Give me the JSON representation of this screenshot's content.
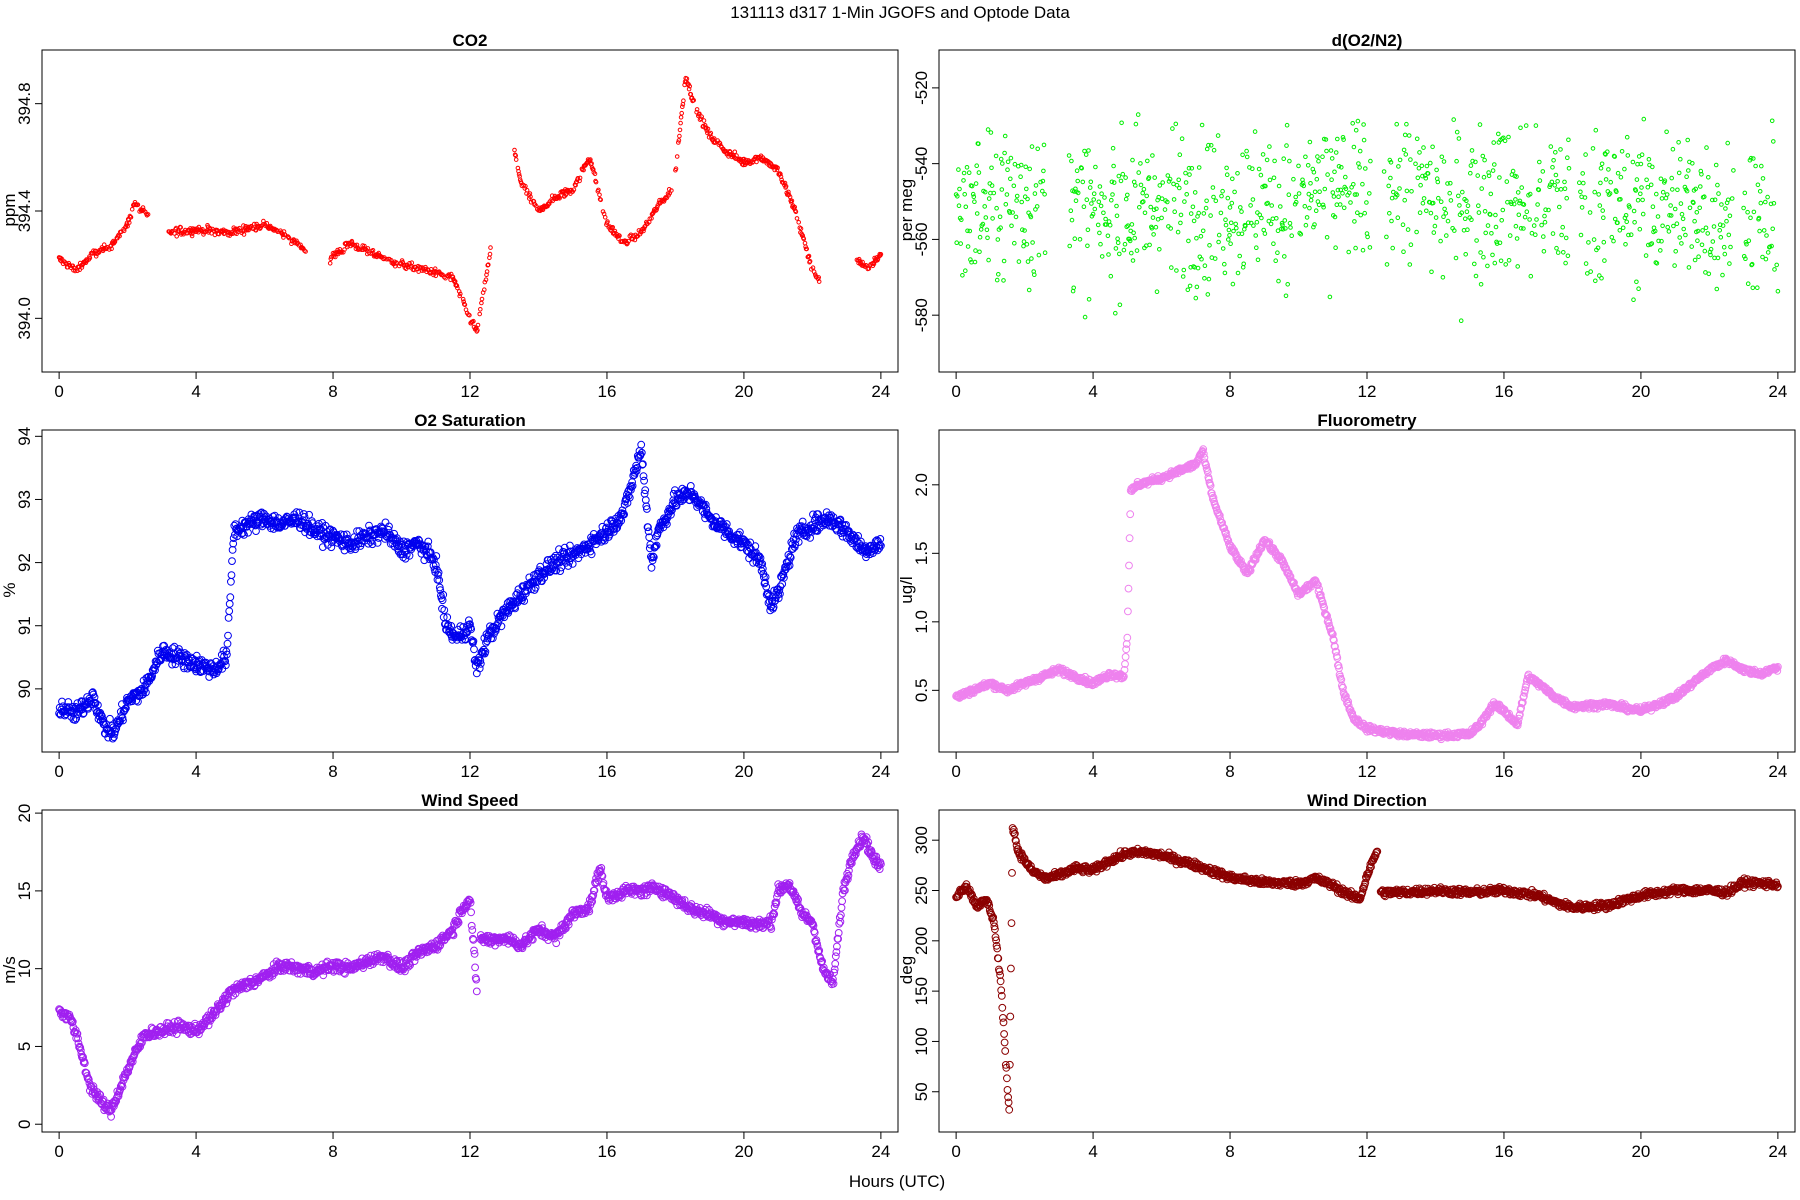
{
  "figure": {
    "title": "131113   d317   1-Min  JGOFS and Optode Data",
    "xlabel": "Hours (UTC)"
  },
  "chart_data": [
    {
      "type": "scatter",
      "title": "CO2",
      "ylabel": "ppm",
      "color": "#ff0000",
      "marker_size": "small",
      "xlim": [
        -0.5,
        24.5
      ],
      "ylim": [
        393.8,
        395.0
      ],
      "xticks": [
        0,
        4,
        8,
        12,
        16,
        20,
        24
      ],
      "yticks": [
        394.0,
        394.4,
        394.8
      ],
      "ytick_labels": [
        "394.0",
        "394.4",
        "394.8"
      ],
      "gaps": [
        [
          2.6,
          3.2
        ],
        [
          7.2,
          7.9
        ],
        [
          12.6,
          13.3
        ],
        [
          17.9,
          18.0
        ],
        [
          22.2,
          23.3
        ]
      ],
      "series": [
        {
          "x": [
            0,
            0.5,
            1,
            1.5,
            2,
            2.2,
            2.6,
            3.2,
            4,
            5,
            6,
            7,
            7.2,
            7.9,
            8.5,
            9,
            10,
            11,
            11.5,
            12,
            12.2,
            12.6,
            13.3,
            13.5,
            14,
            14.5,
            15,
            15.5,
            16,
            16.5,
            17,
            17.5,
            17.9,
            18.0,
            18.3,
            18.6,
            19,
            19.5,
            20,
            20.5,
            21,
            21.5,
            22,
            22.2,
            23.3,
            23.6,
            24
          ],
          "y": [
            394.22,
            394.18,
            394.24,
            394.27,
            394.35,
            394.43,
            394.38,
            394.32,
            394.33,
            394.32,
            394.35,
            394.28,
            394.25,
            394.22,
            394.28,
            394.25,
            394.2,
            394.17,
            394.15,
            394.0,
            393.95,
            394.25,
            394.62,
            394.5,
            394.4,
            394.45,
            394.48,
            394.6,
            394.35,
            394.28,
            394.32,
            394.42,
            394.48,
            394.55,
            394.9,
            394.78,
            394.68,
            394.62,
            394.58,
            394.6,
            394.55,
            394.4,
            394.18,
            394.15,
            394.22,
            394.18,
            394.24
          ]
        }
      ]
    },
    {
      "type": "scatter",
      "title": "d(O2/N2)",
      "ylabel": "per meg",
      "color": "#00ee00",
      "marker_size": "small",
      "xlim": [
        -0.5,
        24.5
      ],
      "ylim": [
        -595,
        -510
      ],
      "xticks": [
        0,
        4,
        8,
        12,
        16,
        20,
        24
      ],
      "yticks": [
        -580,
        -560,
        -540,
        -520
      ],
      "ytick_labels": [
        "-580",
        "-560",
        "-540",
        "-520"
      ],
      "gaps": [
        [
          2.6,
          3.3
        ],
        [
          12.1,
          12.5
        ],
        [
          13.3,
          13.4
        ],
        [
          17.9,
          18.2
        ],
        [
          22.7,
          23.0
        ]
      ],
      "series": [
        {
          "x": [
            0,
            1,
            2,
            2.6,
            3.3,
            4,
            5,
            6,
            7,
            8,
            9,
            10,
            11,
            12.1,
            12.5,
            13.3,
            13.4,
            14,
            15,
            16,
            17,
            17.9,
            18.2,
            19,
            20,
            21,
            22,
            22.7,
            23.0,
            24
          ],
          "y": [
            -553,
            -552,
            -550,
            -549,
            -553,
            -555,
            -553,
            -551,
            -552,
            -552,
            -551,
            -550,
            -549,
            -549,
            -545,
            -545,
            -547,
            -550,
            -550,
            -549,
            -550,
            -551,
            -550,
            -551,
            -551,
            -552,
            -553,
            -553,
            -555,
            -556
          ],
          "spread": 14
        }
      ]
    },
    {
      "type": "scatter",
      "title": "O2 Saturation",
      "ylabel": "%",
      "color": "#0000ee",
      "marker_size": "large",
      "xlim": [
        -0.5,
        24.5
      ],
      "ylim": [
        89.0,
        94.1
      ],
      "xticks": [
        0,
        4,
        8,
        12,
        16,
        20,
        24
      ],
      "yticks": [
        90,
        91,
        92,
        93,
        94
      ],
      "ytick_labels": [
        "90",
        "91",
        "92",
        "93",
        "94"
      ],
      "gaps": [],
      "series": [
        {
          "x": [
            0,
            0.5,
            1,
            1.3,
            1.6,
            2,
            2.5,
            3,
            3.5,
            4,
            4.5,
            4.9,
            5.1,
            5.5,
            6,
            6.5,
            7,
            7.5,
            8,
            8.5,
            9,
            9.5,
            10,
            10.5,
            11,
            11.3,
            11.6,
            12,
            12.2,
            12.5,
            13,
            13.5,
            14,
            14.5,
            15,
            15.5,
            16,
            16.5,
            16.8,
            17,
            17.3,
            17.5,
            18,
            18.5,
            19,
            19.5,
            20,
            20.5,
            20.8,
            21,
            21.5,
            22,
            22.5,
            23,
            23.5,
            24
          ],
          "y": [
            89.7,
            89.6,
            89.9,
            89.4,
            89.3,
            89.8,
            90.0,
            90.6,
            90.5,
            90.4,
            90.3,
            90.5,
            92.5,
            92.6,
            92.7,
            92.6,
            92.7,
            92.5,
            92.4,
            92.3,
            92.4,
            92.5,
            92.2,
            92.3,
            92.0,
            91.0,
            90.8,
            91.0,
            90.3,
            90.8,
            91.2,
            91.5,
            91.8,
            92.0,
            92.1,
            92.3,
            92.5,
            92.8,
            93.4,
            93.8,
            92.0,
            92.5,
            93.0,
            93.1,
            92.7,
            92.5,
            92.3,
            92.0,
            91.3,
            91.5,
            92.4,
            92.6,
            92.7,
            92.5,
            92.2,
            92.3
          ],
          "spread": 0.1
        }
      ]
    },
    {
      "type": "scatter",
      "title": "Fluorometry",
      "ylabel": "ug/l",
      "color": "#ee82ee",
      "marker_size": "large",
      "xlim": [
        -0.5,
        24.5
      ],
      "ylim": [
        0.05,
        2.4
      ],
      "xticks": [
        0,
        4,
        8,
        12,
        16,
        20,
        24
      ],
      "yticks": [
        0.5,
        1.0,
        1.5,
        2.0
      ],
      "ytick_labels": [
        "0.5",
        "1.0",
        "1.5",
        "2.0"
      ],
      "gaps": [],
      "series": [
        {
          "x": [
            0,
            0.5,
            1,
            1.5,
            2,
            2.5,
            3,
            3.5,
            4,
            4.5,
            4.9,
            5.0,
            5.1,
            5.3,
            6,
            6.5,
            7,
            7.2,
            7.5,
            8,
            8.5,
            9,
            9.5,
            10,
            10.5,
            11,
            11.3,
            11.6,
            12,
            12.5,
            13,
            14,
            15,
            15.3,
            15.7,
            16,
            16.4,
            16.7,
            17,
            17.5,
            18,
            19,
            20,
            20.5,
            21,
            21.5,
            22,
            22.5,
            23,
            23.5,
            24
          ],
          "y": [
            0.45,
            0.5,
            0.55,
            0.5,
            0.55,
            0.6,
            0.65,
            0.6,
            0.55,
            0.62,
            0.6,
            0.9,
            1.95,
            2.0,
            2.05,
            2.1,
            2.15,
            2.25,
            1.9,
            1.55,
            1.35,
            1.6,
            1.45,
            1.2,
            1.3,
            0.9,
            0.5,
            0.3,
            0.22,
            0.2,
            0.18,
            0.17,
            0.18,
            0.25,
            0.4,
            0.35,
            0.25,
            0.6,
            0.55,
            0.45,
            0.38,
            0.4,
            0.35,
            0.4,
            0.45,
            0.55,
            0.65,
            0.72,
            0.65,
            0.62,
            0.67
          ],
          "spread": 0.015
        }
      ]
    },
    {
      "type": "scatter",
      "title": "Wind Speed",
      "ylabel": "m/s",
      "color": "#a020f0",
      "marker_size": "large",
      "xlim": [
        -0.5,
        24.5
      ],
      "ylim": [
        -0.5,
        20.2
      ],
      "xticks": [
        0,
        4,
        8,
        12,
        16,
        20,
        24
      ],
      "yticks": [
        0,
        5,
        10,
        15,
        20
      ],
      "ytick_labels": [
        "0",
        "5",
        "10",
        "15",
        "20"
      ],
      "gaps": [
        [
          12.2,
          12.3
        ]
      ],
      "series": [
        {
          "x": [
            0,
            0.3,
            0.6,
            0.9,
            1.2,
            1.5,
            2,
            2.5,
            3,
            3.5,
            4,
            4.5,
            5,
            5.5,
            6,
            6.5,
            7,
            7.5,
            8,
            8.5,
            9,
            9.5,
            10,
            10.5,
            11,
            11.5,
            11.8,
            12.0,
            12.2,
            12.3,
            12.6,
            13,
            13.5,
            14,
            14.5,
            15,
            15.5,
            15.8,
            16,
            16.5,
            17,
            17.5,
            18,
            18.5,
            19,
            19.5,
            20,
            20.5,
            20.8,
            21,
            21.3,
            21.7,
            22,
            22.3,
            22.6,
            22.9,
            23.2,
            23.5,
            23.8,
            24
          ],
          "y": [
            7.2,
            7.0,
            5.0,
            2.5,
            1.5,
            0.8,
            3.5,
            5.8,
            6.0,
            6.3,
            6.0,
            7.0,
            8.5,
            9.0,
            9.5,
            10.2,
            10.0,
            9.8,
            10.2,
            10.0,
            10.5,
            10.8,
            10.0,
            11.0,
            11.5,
            12.5,
            14.0,
            14.5,
            8.5,
            12.0,
            11.8,
            12.0,
            11.5,
            12.5,
            12.0,
            13.5,
            14.0,
            16.5,
            14.5,
            15.0,
            15.0,
            15.2,
            14.5,
            13.8,
            13.5,
            13.0,
            13.0,
            12.8,
            13.0,
            15.0,
            15.5,
            13.5,
            13.0,
            10.0,
            9.0,
            15.0,
            17.5,
            18.5,
            17.0,
            16.5
          ],
          "spread": 0.25
        }
      ]
    },
    {
      "type": "scatter",
      "title": "Wind Direction",
      "ylabel": "deg",
      "color": "#8b0000",
      "marker_size": "large",
      "xlim": [
        -0.5,
        24.5
      ],
      "ylim": [
        10,
        330
      ],
      "xticks": [
        0,
        4,
        8,
        12,
        16,
        20,
        24
      ],
      "yticks": [
        50,
        100,
        150,
        200,
        250,
        300
      ],
      "ytick_labels": [
        "50",
        "100",
        "150",
        "200",
        "250",
        "300"
      ],
      "gaps": [
        [
          12.3,
          12.4
        ]
      ],
      "series": [
        {
          "x": [
            0,
            0.3,
            0.6,
            0.9,
            1.1,
            1.3,
            1.45,
            1.55,
            1.65,
            1.8,
            2.2,
            2.6,
            3,
            3.5,
            4,
            4.5,
            5,
            5.5,
            6,
            7,
            8,
            9,
            10,
            10.5,
            11,
            11.5,
            11.8,
            12.0,
            12.3,
            12.4,
            13,
            14,
            15,
            16,
            17,
            17.5,
            18,
            19,
            20,
            21,
            22,
            22.5,
            23,
            24
          ],
          "y": [
            245,
            255,
            235,
            240,
            220,
            160,
            80,
            30,
            315,
            290,
            270,
            262,
            265,
            272,
            270,
            280,
            287,
            288,
            285,
            275,
            263,
            258,
            257,
            262,
            255,
            245,
            242,
            265,
            290,
            248,
            248,
            250,
            248,
            250,
            245,
            238,
            233,
            235,
            245,
            250,
            250,
            248,
            258,
            256
          ],
          "spread": 2.5
        }
      ]
    }
  ]
}
